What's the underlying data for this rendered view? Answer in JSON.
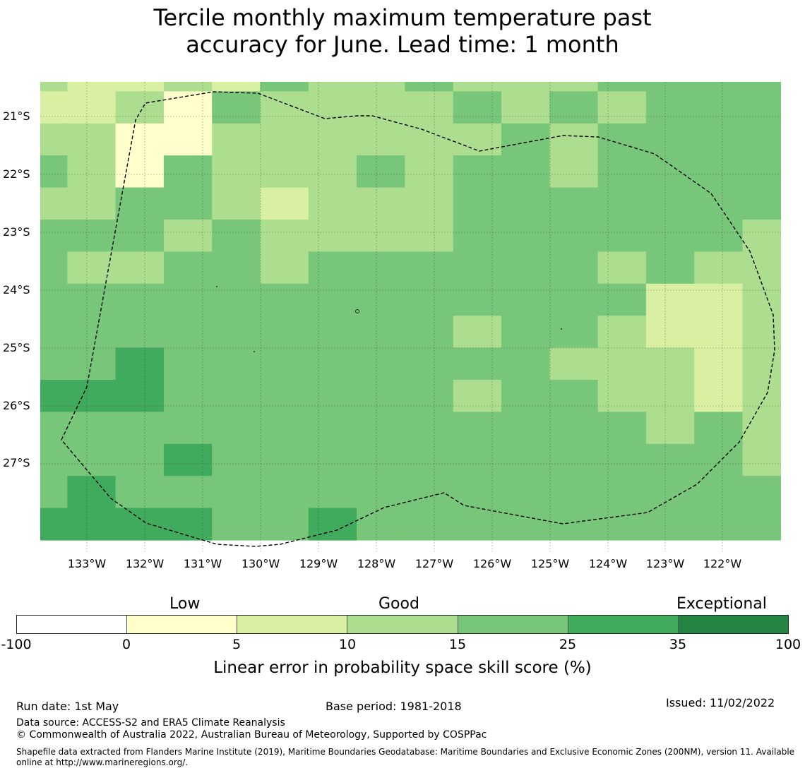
{
  "title_line1": "Tercile monthly maximum temperature past",
  "title_line2": "accuracy for June. Lead time: 1 month",
  "map": {
    "lat_labels": [
      "21°S",
      "22°S",
      "23°S",
      "24°S",
      "25°S",
      "26°S",
      "27°S"
    ],
    "lon_labels": [
      "133°W",
      "132°W",
      "131°W",
      "130°W",
      "129°W",
      "128°W",
      "127°W",
      "126°W",
      "125°W",
      "124°W",
      "123°W",
      "122°W"
    ],
    "grid_skill_classes": [
      [
        3,
        2,
        2,
        3,
        2,
        4,
        3,
        3,
        4,
        3,
        3,
        3,
        4,
        4,
        4,
        4
      ],
      [
        2,
        2,
        3,
        1,
        4,
        3,
        3,
        3,
        3,
        4,
        3,
        4,
        3,
        4,
        4,
        4
      ],
      [
        3,
        3,
        1,
        1,
        3,
        3,
        3,
        3,
        3,
        3,
        4,
        3,
        4,
        4,
        4,
        4
      ],
      [
        4,
        3,
        1,
        4,
        3,
        3,
        3,
        4,
        3,
        4,
        4,
        3,
        4,
        4,
        4,
        4
      ],
      [
        3,
        3,
        4,
        4,
        3,
        2,
        3,
        3,
        3,
        4,
        4,
        4,
        4,
        4,
        4,
        4
      ],
      [
        4,
        4,
        4,
        3,
        4,
        3,
        3,
        3,
        3,
        4,
        4,
        4,
        4,
        4,
        4,
        3
      ],
      [
        4,
        3,
        3,
        4,
        4,
        3,
        4,
        4,
        4,
        4,
        4,
        4,
        3,
        4,
        3,
        3
      ],
      [
        4,
        4,
        4,
        4,
        4,
        4,
        4,
        4,
        4,
        4,
        4,
        4,
        4,
        2,
        2,
        3
      ],
      [
        4,
        4,
        4,
        4,
        4,
        4,
        4,
        4,
        4,
        3,
        4,
        4,
        3,
        2,
        2,
        3
      ],
      [
        4,
        4,
        5,
        4,
        4,
        4,
        4,
        4,
        4,
        4,
        4,
        3,
        3,
        3,
        2,
        3
      ],
      [
        5,
        5,
        5,
        4,
        4,
        4,
        4,
        4,
        4,
        3,
        4,
        4,
        3,
        3,
        2,
        3
      ],
      [
        4,
        4,
        4,
        4,
        4,
        4,
        4,
        4,
        4,
        4,
        4,
        4,
        4,
        3,
        4,
        3
      ],
      [
        4,
        4,
        4,
        5,
        4,
        4,
        4,
        4,
        4,
        4,
        4,
        4,
        4,
        4,
        4,
        3
      ],
      [
        4,
        5,
        4,
        4,
        4,
        4,
        4,
        4,
        4,
        4,
        4,
        4,
        4,
        4,
        4,
        4
      ],
      [
        5,
        5,
        5,
        5,
        4,
        4,
        5,
        4,
        4,
        4,
        4,
        4,
        4,
        4,
        4,
        4
      ]
    ]
  },
  "colorbar": {
    "categories": [
      "Low",
      "Good",
      "Exceptional"
    ],
    "ticks": [
      "-100",
      "0",
      "5",
      "10",
      "15",
      "25",
      "35",
      "100"
    ],
    "colors": [
      "#ffffff",
      "#ffffcc",
      "#d9f0a3",
      "#addd8e",
      "#78c679",
      "#41ab5d",
      "#238443"
    ],
    "label": "Linear error in probability space skill score (%)"
  },
  "footer": {
    "run_date": "Run date: 1st May",
    "base_period": "Base period: 1981-2018",
    "issued": "Issued: 11/02/2022",
    "data_source": "Data source: ACCESS-S2 and ERA5 Climate Reanalysis",
    "copyright": "© Commonwealth of Australia 2022, Australian Bureau of Meteorology, Supported by COSPPac",
    "shapefile": "Shapefile data extracted from Flanders Marine Institute (2019), Maritime Boundaries Geodatabase: Maritime Boundaries and Exclusive Economic Zones (200NM), version 11. Available online at http://www.marineregions.org/."
  }
}
